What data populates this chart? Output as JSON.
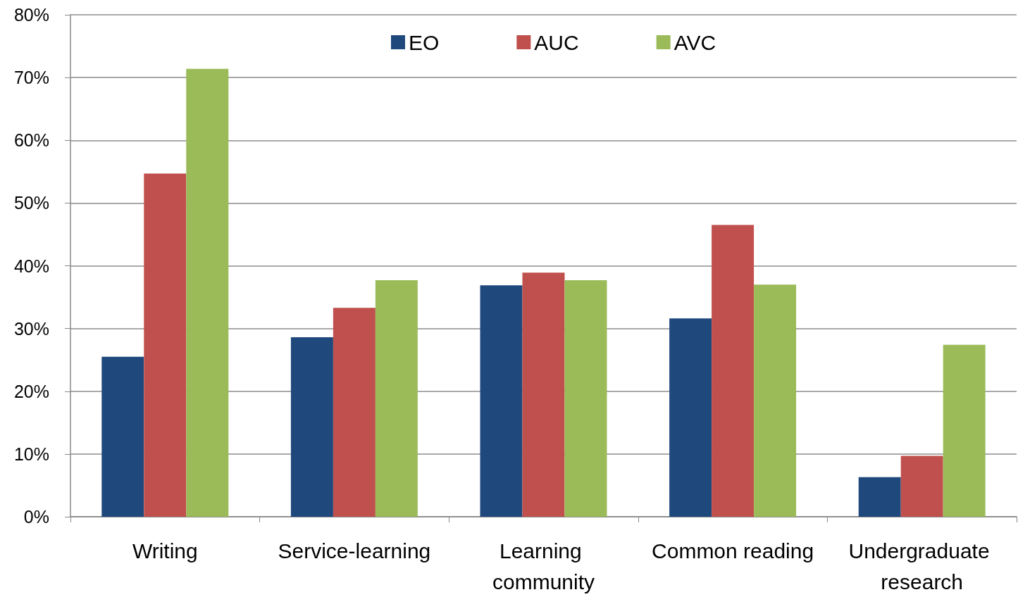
{
  "chart_data": {
    "type": "bar",
    "categories": [
      "Writing",
      "Service-learning",
      "Learning community",
      "Common reading",
      "Undergraduate research"
    ],
    "series": [
      {
        "name": "EO",
        "color": "#1f497d",
        "values": [
          25.5,
          28.6,
          36.9,
          31.6,
          6.3
        ]
      },
      {
        "name": "AUC",
        "color": "#c0504d",
        "values": [
          54.7,
          33.3,
          38.9,
          46.5,
          9.7
        ]
      },
      {
        "name": "AVC",
        "color": "#9bbb59",
        "values": [
          71.4,
          37.7,
          37.7,
          37.0,
          27.4
        ]
      }
    ],
    "ylim": [
      0,
      80
    ],
    "yticks": [
      {
        "value": 0,
        "label": "0%"
      },
      {
        "value": 10,
        "label": "10%"
      },
      {
        "value": 20,
        "label": "20%"
      },
      {
        "value": 30,
        "label": "30%"
      },
      {
        "value": 40,
        "label": "40%"
      },
      {
        "value": 50,
        "label": "50%"
      },
      {
        "value": 60,
        "label": "60%"
      },
      {
        "value": 70,
        "label": "70%"
      },
      {
        "value": 80,
        "label": "80%"
      }
    ],
    "grid": "y",
    "legend": "top"
  }
}
